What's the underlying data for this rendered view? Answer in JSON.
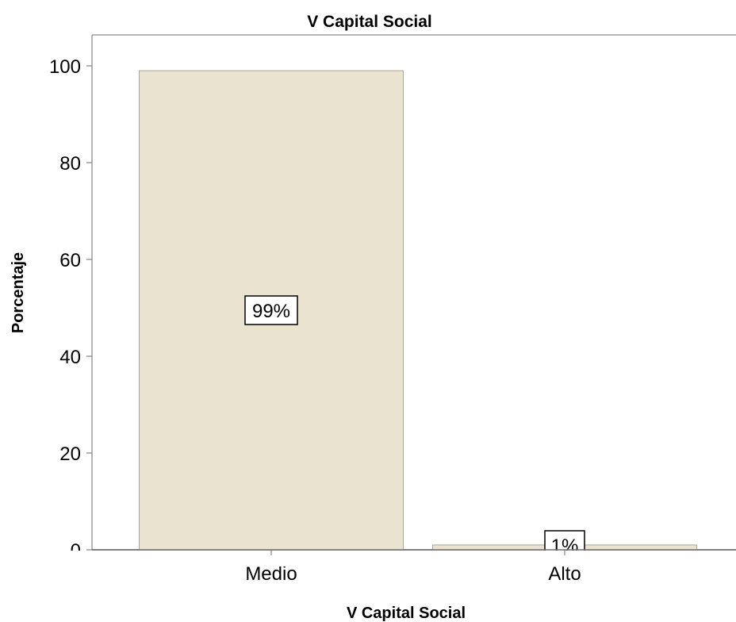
{
  "chart_data": {
    "type": "bar",
    "title": "V Capital Social",
    "xlabel": "V Capital Social",
    "ylabel": "Porcentaje",
    "categories": [
      "Medio",
      "Alto"
    ],
    "values": [
      99,
      1
    ],
    "data_labels": [
      "99%",
      "1%"
    ],
    "ylim": [
      0,
      100
    ],
    "yticks": [
      0,
      20,
      40,
      60,
      80,
      100
    ],
    "grid": false,
    "legend": "none",
    "bar_color": "#e9e3d0",
    "bar_stroke": "#aaa79c",
    "axis_color": "#6e6e6e"
  }
}
